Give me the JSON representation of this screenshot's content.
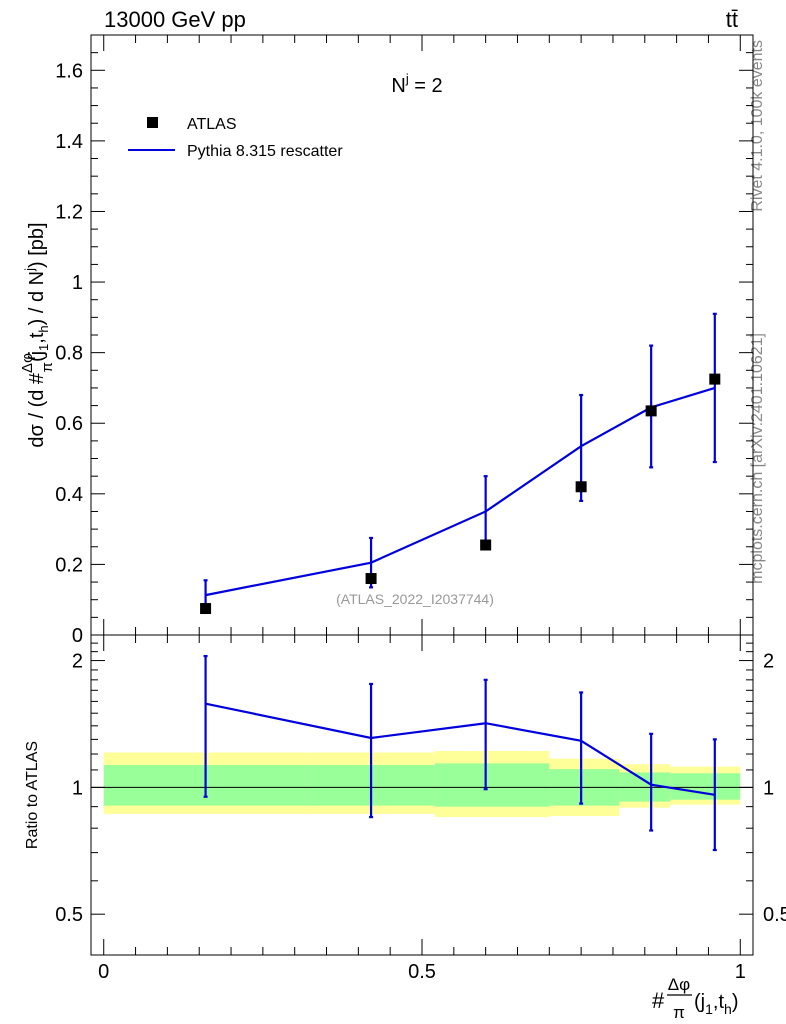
{
  "header": {
    "left": "13000 GeV pp",
    "right": "tt̄"
  },
  "side_labels": {
    "rivet": "Rivet 4.1.0,  100k events",
    "mcplots": "mcplots.cern.ch [arXiv:2401.10621]"
  },
  "chart_data": [
    {
      "type": "scatter",
      "panel": "main",
      "annotation": "N",
      "annotation_sup": "j",
      "annotation_rest": " = 2",
      "watermark": "(ATLAS_2022_I2037744)",
      "ylabel": "dσ / (d #Δφ/π(j1,th) / d N j) [pb]",
      "ylabel_parts": {
        "a": "dσ / (d #",
        "num": "Δφ",
        "den": "π",
        "b": "(j",
        "s1": "1",
        "c": ",t",
        "s2": "h",
        "d": ") / d N",
        "s3": "j",
        "e": ") [pb]"
      },
      "xlim": [
        -0.02,
        1.02
      ],
      "ylim": [
        0,
        1.7
      ],
      "yticks": [
        0,
        0.2,
        0.4,
        0.6,
        0.8,
        1,
        1.2,
        1.4,
        1.6
      ],
      "ytick_labels": [
        "0",
        "0.2",
        "0.4",
        "0.6",
        "0.8",
        "1",
        "1.2",
        "1.4",
        "1.6"
      ],
      "legend_position": "top-left",
      "series": [
        {
          "name": "ATLAS",
          "kind": "markers",
          "x": [
            0.16,
            0.42,
            0.6,
            0.75,
            0.86,
            0.96
          ],
          "y": [
            0.075,
            0.16,
            0.255,
            0.42,
            0.635,
            0.725
          ],
          "color": "#000000"
        },
        {
          "name": "Pythia 8.315 rescatter",
          "kind": "line",
          "x": [
            0.16,
            0.42,
            0.6,
            0.75,
            0.86,
            0.96
          ],
          "y": [
            0.113,
            0.205,
            0.35,
            0.535,
            0.645,
            0.7
          ],
          "yerr_low": [
            0.04,
            0.07,
            0.1,
            0.155,
            0.17,
            0.21
          ],
          "yerr_high": [
            0.042,
            0.07,
            0.1,
            0.145,
            0.175,
            0.21
          ],
          "color": "#0000dd"
        }
      ]
    },
    {
      "type": "line",
      "panel": "ratio",
      "ylabel": "Ratio to ATLAS",
      "xlabel_parts": {
        "a": "#",
        "num": "Δφ",
        "den": "π",
        "b": "(j",
        "s1": "1",
        "c": ",t",
        "s2": "h",
        "d": ")"
      },
      "xlim": [
        -0.02,
        1.02
      ],
      "ylim": [
        0.4,
        2.3
      ],
      "yscale": "log",
      "xticks": [
        0,
        0.5,
        1
      ],
      "xtick_labels": [
        "0",
        "0.5",
        "1"
      ],
      "yticks": [
        0.5,
        1,
        2
      ],
      "ytick_labels": [
        "0.5",
        "1",
        "2"
      ],
      "reference_line": 1,
      "bands": {
        "bins": [
          0.0,
          0.32,
          0.52,
          0.7,
          0.81,
          0.89,
          1.0
        ],
        "yellow_low": [
          0.865,
          0.865,
          0.85,
          0.855,
          0.895,
          0.91
        ],
        "yellow_high": [
          1.21,
          1.21,
          1.22,
          1.17,
          1.135,
          1.12
        ],
        "green_low": [
          0.905,
          0.905,
          0.9,
          0.905,
          0.925,
          0.935
        ],
        "green_high": [
          1.13,
          1.13,
          1.14,
          1.105,
          1.085,
          1.08
        ],
        "yellow_color": "#ffff99",
        "green_color": "#99ff99"
      },
      "series": [
        {
          "name": "Pythia 8.315 rescatter",
          "x": [
            0.16,
            0.42,
            0.6,
            0.75,
            0.86,
            0.96
          ],
          "y": [
            1.58,
            1.31,
            1.42,
            1.29,
            1.015,
            0.96
          ],
          "err_low": [
            0.95,
            0.85,
            0.99,
            0.915,
            0.79,
            0.71
          ],
          "err_high": [
            2.05,
            1.76,
            1.8,
            1.68,
            1.34,
            1.3
          ],
          "color": "#0000dd"
        }
      ]
    }
  ]
}
